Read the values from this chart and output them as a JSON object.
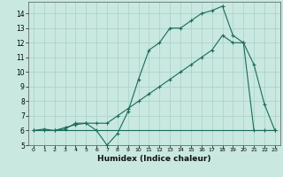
{
  "title": "",
  "xlabel": "Humidex (Indice chaleur)",
  "bg_color": "#c8e8e0",
  "line_color": "#1a6b5a",
  "grid_color": "#a8d0c8",
  "xlim": [
    -0.5,
    23.5
  ],
  "ylim": [
    5,
    14.8
  ],
  "xticks": [
    0,
    1,
    2,
    3,
    4,
    5,
    6,
    7,
    8,
    9,
    10,
    11,
    12,
    13,
    14,
    15,
    16,
    17,
    18,
    19,
    20,
    21,
    22,
    23
  ],
  "yticks": [
    5,
    6,
    7,
    8,
    9,
    10,
    11,
    12,
    13,
    14
  ],
  "line1_x": [
    0,
    1,
    2,
    3,
    4,
    5,
    6,
    7,
    8,
    9,
    10,
    11,
    12,
    13,
    14,
    15,
    16,
    17,
    18,
    19,
    20,
    21,
    22,
    23
  ],
  "line1_y": [
    6,
    6.1,
    6,
    6.1,
    6.5,
    6.5,
    6.0,
    5.0,
    5.8,
    7.3,
    9.5,
    11.5,
    12.0,
    13.0,
    13.0,
    13.5,
    14.0,
    14.2,
    14.5,
    12.5,
    12.0,
    10.5,
    7.8,
    6.0
  ],
  "line2_x": [
    0,
    1,
    2,
    3,
    4,
    5,
    6,
    7,
    8,
    9,
    10,
    11,
    12,
    13,
    14,
    15,
    16,
    17,
    18,
    19,
    20,
    21,
    22,
    23
  ],
  "line2_y": [
    6,
    6,
    6,
    6.2,
    6.4,
    6.5,
    6.5,
    6.5,
    7.0,
    7.5,
    8.0,
    8.5,
    9.0,
    9.5,
    10.0,
    10.5,
    11.0,
    11.5,
    12.5,
    12.0,
    12.0,
    6.0,
    6.0,
    6.0
  ],
  "line3_x": [
    0,
    1,
    2,
    3,
    4,
    5,
    6,
    7,
    8,
    9,
    10,
    11,
    12,
    13,
    14,
    15,
    16,
    17,
    18,
    19,
    20,
    21,
    22,
    23
  ],
  "line3_y": [
    6,
    6,
    6,
    6,
    6,
    6,
    6,
    6,
    6,
    6,
    6,
    6,
    6,
    6,
    6,
    6,
    6,
    6,
    6,
    6,
    6,
    6,
    6,
    6
  ]
}
